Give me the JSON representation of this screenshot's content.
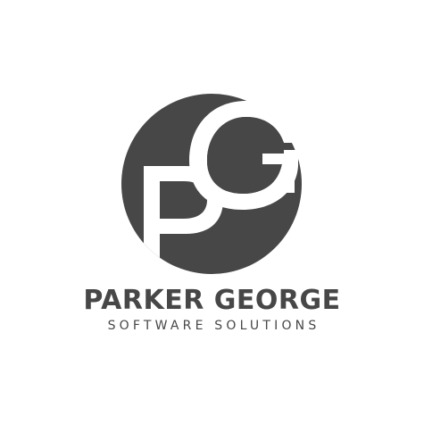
{
  "brand": {
    "name": "PARKER GEORGE",
    "tagline": "SOFTWARE SOLUTIONS",
    "monogram": "PG"
  },
  "colors": {
    "primary": "#474747",
    "background": "#ffffff"
  }
}
